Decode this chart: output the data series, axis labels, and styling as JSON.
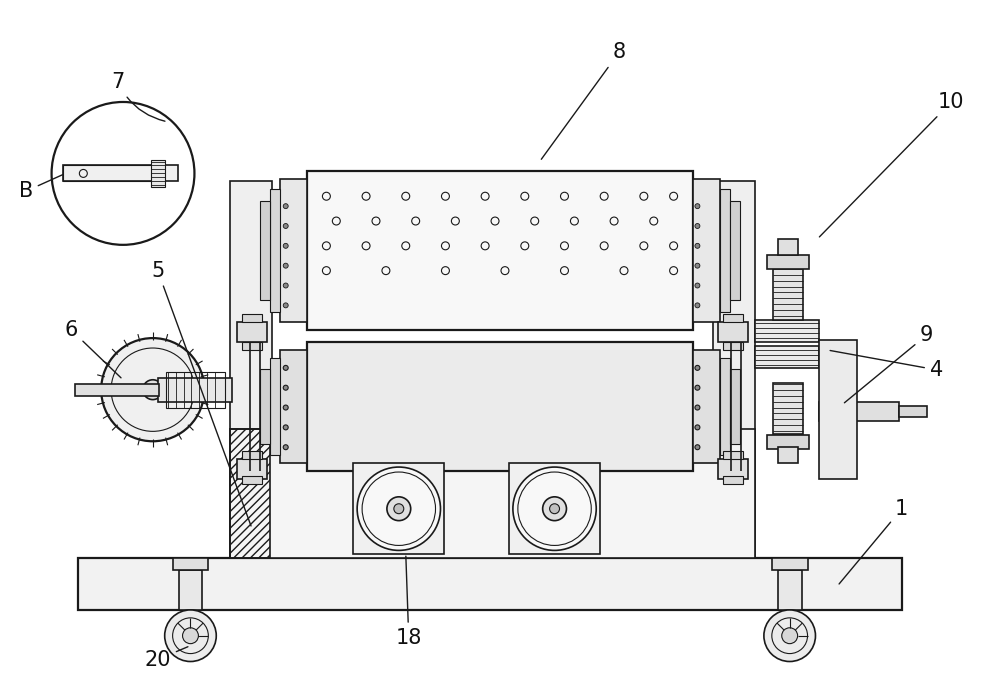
{
  "bg_color": "#ffffff",
  "line_color": "#1a1a1a",
  "fig_width": 10.0,
  "fig_height": 7.0,
  "label_fontsize": 15
}
